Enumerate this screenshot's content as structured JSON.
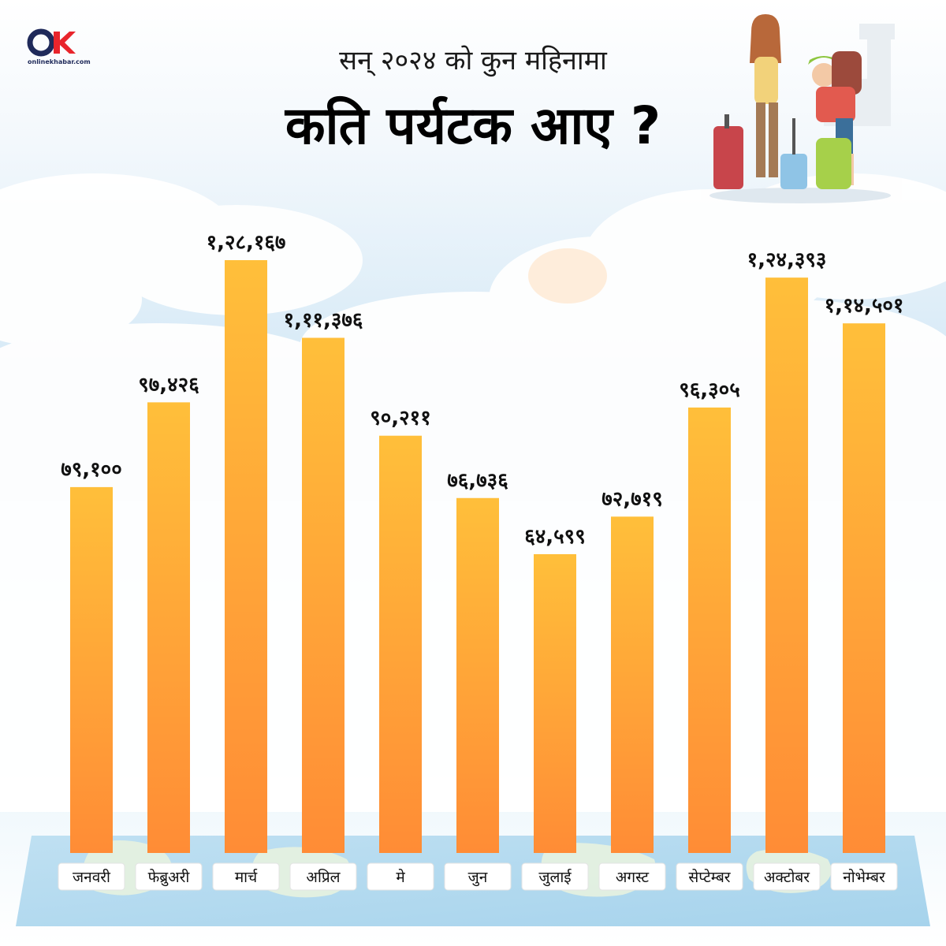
{
  "brand": {
    "logo_text": "onlinekhabar.com",
    "primary_color": "#1f2a5a",
    "accent_color": "#e8252c"
  },
  "header": {
    "title_line1": "सन् २०२४ को कुन महिनामा",
    "title_line2": "कति पर्यटक आए ?"
  },
  "chart_data": {
    "type": "bar",
    "categories": [
      "जनवरी",
      "फेब्रुअरी",
      "मार्च",
      "अप्रिल",
      "मे",
      "जुन",
      "जुलाई",
      "अगस्ट",
      "सेप्टेम्बर",
      "अक्टोबर",
      "नोभेम्बर"
    ],
    "values": [
      79100,
      97426,
      128167,
      111376,
      90211,
      76736,
      64599,
      72719,
      96305,
      124393,
      114501
    ],
    "data_labels": [
      "७९,१००",
      "९७,४२६",
      "१,२८,१६७",
      "१,११,३७६",
      "९०,२११",
      "७६,७३६",
      "६४,५९९",
      "७२,७१९",
      "९६,३०५",
      "१,२४,३९३",
      "१,१४,५०१"
    ],
    "title": "कति पर्यटक आए ?",
    "xlabel": "",
    "ylabel": "",
    "ylim": [
      0,
      130000
    ],
    "grid": false,
    "legend": "none",
    "bar_color_top": "#ffbf3a",
    "bar_color_bottom": "#ff8c36"
  }
}
